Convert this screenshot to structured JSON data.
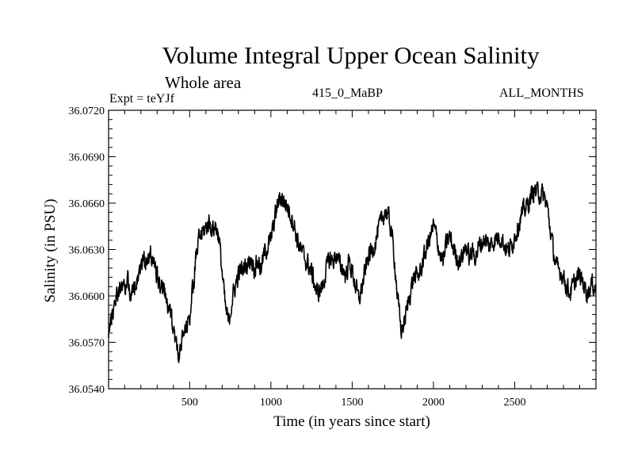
{
  "header": {
    "title": "Volume Integral Upper Ocean Salinity",
    "subtitle": "Whole area",
    "experiment": "Expt = teYJf",
    "run_label": "415_0_MaBP",
    "months_label": "ALL_MONTHS"
  },
  "chart_data": {
    "type": "line",
    "title": "Volume Integral Upper Ocean Salinity",
    "xlabel": "Time (in years since start)",
    "ylabel": "Salinity (in PSU)",
    "xlim": [
      1,
      3000
    ],
    "ylim": [
      36.054,
      36.072
    ],
    "x_ticks": [
      500,
      1000,
      1500,
      2000,
      2500
    ],
    "x_tick_labels": [
      "500",
      "1000",
      "1500",
      "2000",
      "2500"
    ],
    "y_ticks": [
      36.054,
      36.057,
      36.06,
      36.063,
      36.066,
      36.069,
      36.072
    ],
    "y_tick_labels": [
      "36.0540",
      "36.0570",
      "36.0600",
      "36.0630",
      "36.0660",
      "36.0690",
      "36.0720"
    ],
    "grid": false,
    "noise_amplitude": 0.0011,
    "series": [
      {
        "name": "Salinity",
        "color": "#000000",
        "x": [
          0,
          20,
          40,
          60,
          80,
          100,
          120,
          140,
          160,
          180,
          200,
          220,
          240,
          260,
          280,
          300,
          320,
          340,
          360,
          380,
          400,
          420,
          440,
          460,
          480,
          500,
          520,
          540,
          560,
          580,
          600,
          620,
          640,
          660,
          680,
          700,
          720,
          740,
          760,
          780,
          800,
          820,
          840,
          860,
          880,
          900,
          920,
          940,
          960,
          980,
          1000,
          1020,
          1040,
          1060,
          1080,
          1100,
          1120,
          1140,
          1160,
          1180,
          1200,
          1220,
          1240,
          1260,
          1280,
          1300,
          1320,
          1340,
          1360,
          1380,
          1400,
          1420,
          1440,
          1460,
          1480,
          1500,
          1520,
          1540,
          1560,
          1580,
          1600,
          1620,
          1640,
          1660,
          1680,
          1700,
          1720,
          1740,
          1760,
          1780,
          1800,
          1820,
          1840,
          1860,
          1880,
          1900,
          1920,
          1940,
          1960,
          1980,
          2000,
          2020,
          2040,
          2060,
          2080,
          2100,
          2120,
          2140,
          2160,
          2180,
          2200,
          2220,
          2240,
          2260,
          2280,
          2300,
          2320,
          2340,
          2360,
          2380,
          2400,
          2420,
          2440,
          2460,
          2480,
          2500,
          2520,
          2540,
          2560,
          2580,
          2600,
          2620,
          2640,
          2660,
          2680,
          2700,
          2720,
          2740,
          2760,
          2780,
          2800,
          2820,
          2840,
          2860,
          2880,
          2900,
          2920,
          2940,
          2960,
          2980,
          3000
        ],
        "y": [
          36.0578,
          36.0585,
          36.0598,
          36.0603,
          36.0608,
          36.0604,
          36.0612,
          36.0598,
          36.0606,
          36.0614,
          36.0619,
          36.0624,
          36.0621,
          36.0628,
          36.0622,
          36.0612,
          36.0607,
          36.0603,
          36.0595,
          36.0588,
          36.0582,
          36.0566,
          36.0562,
          36.0574,
          36.0579,
          36.0588,
          36.0605,
          36.0625,
          36.0638,
          36.0641,
          36.0644,
          36.0648,
          36.0643,
          36.0646,
          36.0638,
          36.0615,
          36.0592,
          36.0582,
          36.0597,
          36.0606,
          36.0614,
          36.0617,
          36.0619,
          36.0621,
          36.0624,
          36.0618,
          36.0623,
          36.0617,
          36.0628,
          36.0632,
          36.0636,
          36.0648,
          36.0659,
          36.0664,
          36.0661,
          36.0658,
          36.0653,
          36.0647,
          36.0637,
          36.0631,
          36.0626,
          36.0622,
          36.0618,
          36.0612,
          36.0602,
          36.0603,
          36.0607,
          36.0617,
          36.0624,
          36.0622,
          36.0627,
          36.0621,
          36.0618,
          36.0613,
          36.0622,
          36.0616,
          36.0607,
          36.0597,
          36.0605,
          36.0616,
          36.0626,
          36.0629,
          36.0634,
          36.0642,
          36.0648,
          36.0655,
          36.0652,
          36.0643,
          36.0624,
          36.0598,
          36.0578,
          36.0582,
          36.0593,
          36.0604,
          36.0613,
          36.0612,
          36.0616,
          36.0624,
          36.0632,
          36.0638,
          36.0645,
          36.0638,
          36.0627,
          36.0622,
          36.0634,
          36.0638,
          36.0632,
          36.0626,
          36.0622,
          36.0627,
          36.0632,
          36.0625,
          36.0628,
          36.0626,
          36.0632,
          36.0635,
          36.0637,
          36.0632,
          36.0634,
          36.0637,
          36.0638,
          36.0638,
          36.0632,
          36.0629,
          36.0632,
          36.0639,
          36.0645,
          36.0651,
          36.0656,
          36.0659,
          36.0664,
          36.0668,
          36.0667,
          36.0666,
          36.0664,
          36.0658,
          36.0642,
          36.0628,
          36.0617,
          36.0616,
          36.0613,
          36.0606,
          36.0602,
          36.0606,
          36.0611,
          36.0613,
          36.0609,
          36.0603,
          36.0604,
          36.0608,
          36.0604
        ]
      }
    ]
  }
}
